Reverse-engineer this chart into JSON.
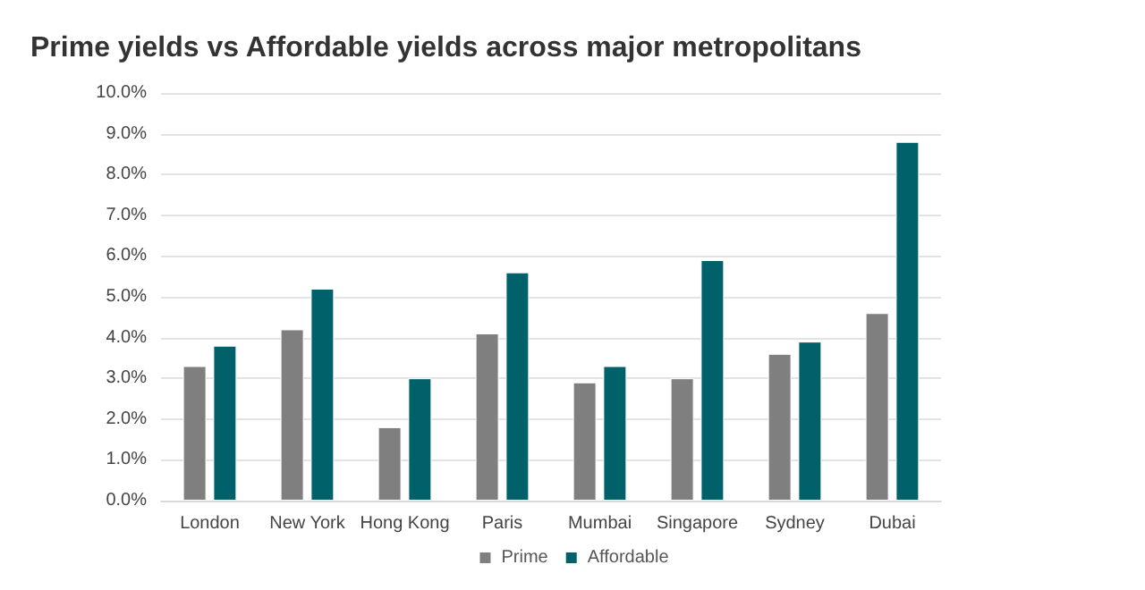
{
  "chart_data": {
    "type": "bar",
    "title": "Prime yields vs Affordable yields across major metropolitans",
    "categories": [
      "London",
      "New York",
      "Hong Kong",
      "Paris",
      "Mumbai",
      "Singapore",
      "Sydney",
      "Dubai"
    ],
    "series": [
      {
        "name": "Prime",
        "color": "#7f7f7f",
        "values": [
          3.3,
          4.2,
          1.8,
          4.1,
          2.9,
          3.0,
          3.6,
          4.6
        ]
      },
      {
        "name": "Affordable",
        "color": "#01616b",
        "values": [
          3.8,
          5.2,
          3.0,
          5.6,
          3.3,
          5.9,
          3.9,
          8.8
        ]
      }
    ],
    "ylim": [
      0,
      10
    ],
    "yticks": [
      {
        "value": 0,
        "label": "0.0%"
      },
      {
        "value": 1,
        "label": "1.0%"
      },
      {
        "value": 2,
        "label": "2.0%"
      },
      {
        "value": 3,
        "label": "3.0%"
      },
      {
        "value": 4,
        "label": "4.0%"
      },
      {
        "value": 5,
        "label": "5.0%"
      },
      {
        "value": 6,
        "label": "6.0%"
      },
      {
        "value": 7,
        "label": "7.0%"
      },
      {
        "value": 8,
        "label": "8.0%"
      },
      {
        "value": 9,
        "label": "9.0%"
      },
      {
        "value": 10,
        "label": "10.0%"
      }
    ],
    "grid": "y",
    "legend": "bottom"
  }
}
